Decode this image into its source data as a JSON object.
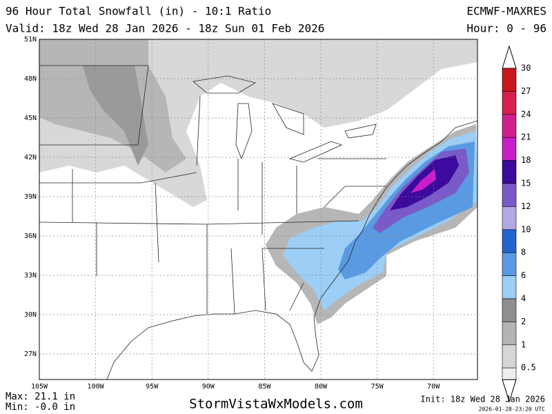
{
  "header": {
    "title": "96 Hour Total Snowfall (in) - 10:1 Ratio",
    "valid": "Valid: 18z Wed 28 Jan 2026 - 18z Sun 01 Feb 2026",
    "model": "ECMWF-MAXRES",
    "hour": "Hour: 0 - 96"
  },
  "map": {
    "lat_labels": [
      "51N",
      "48N",
      "45N",
      "42N",
      "39N",
      "36N",
      "33N",
      "30N",
      "27N"
    ],
    "lon_labels": [
      "105W",
      "100W",
      "95W",
      "90W",
      "85W",
      "80W",
      "75W",
      "70W"
    ]
  },
  "legend": {
    "levels": [
      {
        "label": "30",
        "color": "#c8161b"
      },
      {
        "label": "27",
        "color": "#d81e4e"
      },
      {
        "label": "24",
        "color": "#cf1f8c"
      },
      {
        "label": "21",
        "color": "#c81ec8"
      },
      {
        "label": "18",
        "color": "#3c0a9c"
      },
      {
        "label": "15",
        "color": "#7a5ac8"
      },
      {
        "label": "12",
        "color": "#b4a8e4"
      },
      {
        "label": "10",
        "color": "#2264cc"
      },
      {
        "label": "8",
        "color": "#5a9ae2"
      },
      {
        "label": "6",
        "color": "#9ccef6"
      },
      {
        "label": "4",
        "color": "#8e8e8e"
      },
      {
        "label": "2",
        "color": "#b4b4b4"
      },
      {
        "label": "1",
        "color": "#d6d6d6"
      },
      {
        "label": "0.5",
        "color": "#eeeeee"
      }
    ]
  },
  "footer": {
    "max": "Max: 21.1 in",
    "min": "Min: -0.0 in",
    "site": "StormVistaWxModels.com",
    "init": "Init: 18z Wed 28 Jan 2026",
    "stamp": "2026-01-28-23:20 UTC"
  }
}
